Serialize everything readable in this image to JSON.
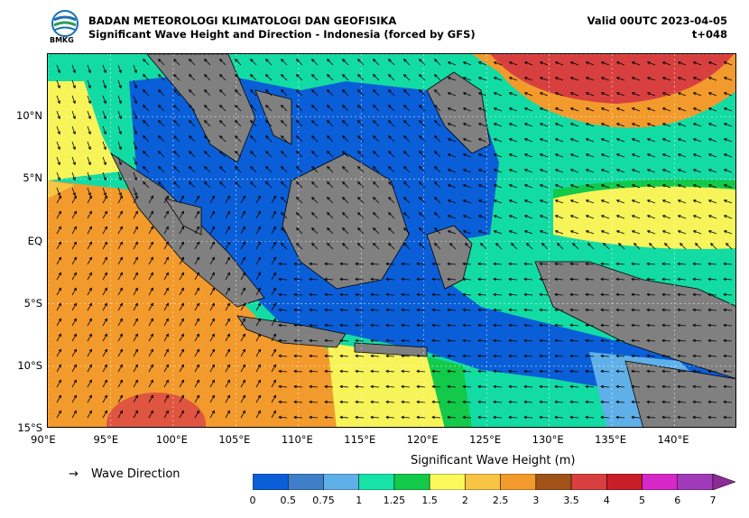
{
  "header": {
    "agency": "BADAN METEOROLOGI KLIMATOLOGI DAN GEOFISIKA",
    "title": "Significant Wave Height and Direction - Indonesia (forced by GFS)",
    "valid": "Valid 00UTC 2023-04-05",
    "lead": "t+048",
    "logo_text": "BMKG"
  },
  "map": {
    "lat_labels": [
      "10°N",
      "5°N",
      "EQ",
      "5°S",
      "10°S",
      "15°S"
    ],
    "lon_labels": [
      "90°E",
      "95°E",
      "100°E",
      "105°E",
      "110°E",
      "115°E",
      "120°E",
      "125°E",
      "130°E",
      "135°E",
      "140°E"
    ],
    "lon_range": [
      90,
      145
    ],
    "lat_range": [
      -15,
      15
    ],
    "land_color": "#808080",
    "arrow_color": "#000000"
  },
  "legend": {
    "arrow_symbol": "→",
    "arrow_label": "Wave Direction"
  },
  "colorbar": {
    "title": "Significant Wave Height (m)",
    "ticks": [
      "0",
      "0.5",
      "0.75",
      "1",
      "1.25",
      "1.5",
      "2",
      "2.5",
      "3",
      "3.5",
      "4",
      "5",
      "6",
      "7"
    ],
    "colors": [
      "#0a5fd8",
      "#3f7fc8",
      "#5fb0e8",
      "#17e2a8",
      "#13c94a",
      "#f9f95a",
      "#f7c443",
      "#f39a2c",
      "#a05218",
      "#d84040",
      "#c81e28",
      "#d628c8",
      "#a03ab8"
    ],
    "extend_color": "#8a2c94"
  }
}
